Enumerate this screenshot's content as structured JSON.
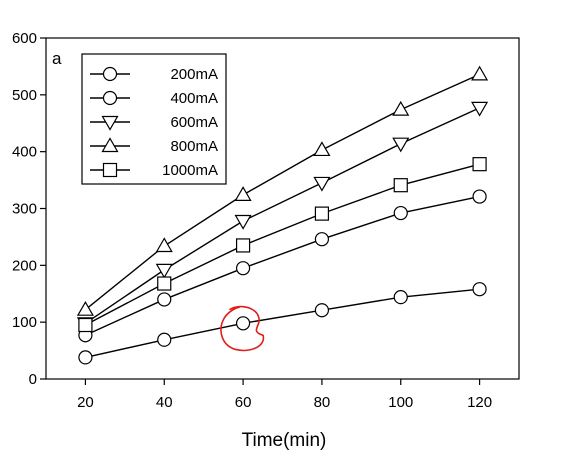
{
  "chart_data": {
    "type": "line",
    "panel_label": "a",
    "title": "",
    "xlabel": "Time(min)",
    "ylabel": "",
    "xlim": [
      10,
      130
    ],
    "ylim": [
      0,
      600
    ],
    "xticks": [
      20,
      40,
      60,
      80,
      100,
      120
    ],
    "yticks": [
      0,
      100,
      200,
      300,
      400,
      500,
      600
    ],
    "x": [
      20,
      40,
      60,
      80,
      100,
      120
    ],
    "grid": false,
    "legend_position": "top-left",
    "series": [
      {
        "name": "200mA",
        "marker": "circle",
        "values": [
          38,
          69,
          98,
          121,
          144,
          158
        ]
      },
      {
        "name": "400mA",
        "marker": "circle",
        "values": [
          77,
          140,
          195,
          246,
          292,
          321
        ]
      },
      {
        "name": "600mA",
        "marker": "triangle-down",
        "values": [
          98,
          192,
          278,
          345,
          414,
          477
        ]
      },
      {
        "name": "800mA",
        "marker": "triangle-up",
        "values": [
          122,
          234,
          324,
          403,
          474,
          536
        ]
      },
      {
        "name": "1000mA",
        "marker": "square",
        "values": [
          95,
          168,
          235,
          291,
          341,
          378
        ]
      }
    ],
    "annotations": [
      {
        "type": "hand-drawn-circle",
        "color": "#e01e1e",
        "x": 60,
        "y": 98
      }
    ]
  }
}
